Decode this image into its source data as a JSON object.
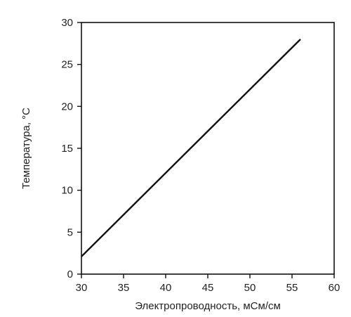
{
  "chart_data": {
    "type": "line",
    "title": "",
    "xlabel": "Электропроводность, мСм/см",
    "ylabel": "Температура, °С",
    "xlim": [
      30,
      60
    ],
    "ylim": [
      0,
      30
    ],
    "x_ticks": [
      "30",
      "35",
      "40",
      "45",
      "50",
      "55",
      "60"
    ],
    "y_ticks": [
      "0",
      "5",
      "10",
      "15",
      "20",
      "25",
      "30"
    ],
    "grid": false,
    "legend": "none",
    "series": [
      {
        "x": [
          30,
          56
        ],
        "y": [
          2.1,
          28
        ],
        "color": "#111111"
      }
    ]
  }
}
